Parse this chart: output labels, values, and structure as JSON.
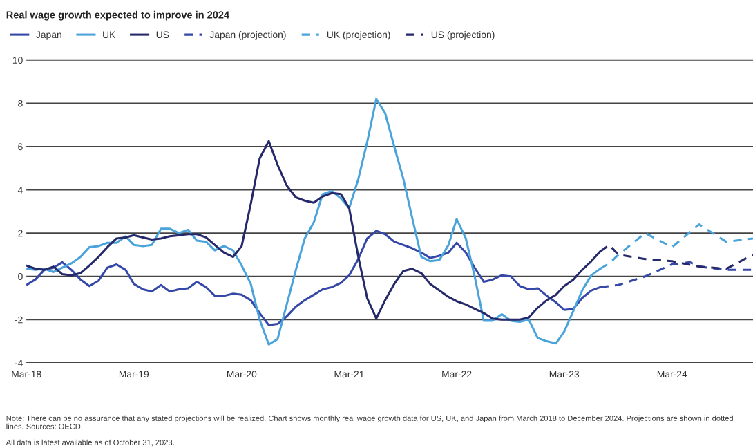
{
  "chart_data": {
    "type": "line",
    "title": "Real wage growth expected to improve in 2024",
    "x": [
      "2018-03",
      "2018-04",
      "2018-05",
      "2018-06",
      "2018-07",
      "2018-08",
      "2018-09",
      "2018-10",
      "2018-11",
      "2018-12",
      "2019-01",
      "2019-02",
      "2019-03",
      "2019-04",
      "2019-05",
      "2019-06",
      "2019-07",
      "2019-08",
      "2019-09",
      "2019-10",
      "2019-11",
      "2019-12",
      "2020-01",
      "2020-02",
      "2020-03",
      "2020-04",
      "2020-05",
      "2020-06",
      "2020-07",
      "2020-08",
      "2020-09",
      "2020-10",
      "2020-11",
      "2020-12",
      "2021-01",
      "2021-02",
      "2021-03",
      "2021-04",
      "2021-05",
      "2021-06",
      "2021-07",
      "2021-08",
      "2021-09",
      "2021-10",
      "2021-11",
      "2021-12",
      "2022-01",
      "2022-02",
      "2022-03",
      "2022-04",
      "2022-05",
      "2022-06",
      "2022-07",
      "2022-08",
      "2022-09",
      "2022-10",
      "2022-11",
      "2022-12",
      "2023-01",
      "2023-02",
      "2023-03",
      "2023-04",
      "2023-05",
      "2023-06",
      "2023-07"
    ],
    "series": [
      {
        "name": "Japan",
        "color": "#3548a8",
        "line_style": "solid",
        "values": [
          -0.4,
          -0.14,
          0.3,
          0.4,
          0.65,
          0.3,
          -0.15,
          -0.45,
          -0.2,
          0.4,
          0.55,
          0.3,
          -0.35,
          -0.6,
          -0.7,
          -0.4,
          -0.7,
          -0.6,
          -0.55,
          -0.25,
          -0.5,
          -0.9,
          -0.9,
          -0.8,
          -0.85,
          -1.1,
          -1.7,
          -2.25,
          -2.2,
          -1.85,
          -1.4,
          -1.1,
          -0.85,
          -0.6,
          -0.5,
          -0.3,
          0.05,
          0.8,
          1.75,
          2.1,
          1.95,
          1.6,
          1.45,
          1.3,
          1.1,
          0.85,
          0.95,
          1.1,
          1.55,
          1.1,
          0.4,
          -0.25,
          -0.15,
          0.05,
          0.0,
          -0.45,
          -0.6,
          -0.55,
          -0.9,
          -1.2,
          -1.55,
          -1.5,
          -1.0,
          -0.65,
          -0.5
        ]
      },
      {
        "name": "UK",
        "color": "#4aa3db",
        "line_style": "solid",
        "values": [
          0.35,
          0.3,
          0.35,
          0.2,
          0.4,
          0.6,
          0.9,
          1.35,
          1.4,
          1.55,
          1.55,
          1.85,
          1.45,
          1.4,
          1.45,
          2.2,
          2.2,
          2.0,
          2.15,
          1.65,
          1.6,
          1.2,
          1.4,
          1.2,
          0.5,
          -0.35,
          -2.0,
          -3.15,
          -2.9,
          -1.3,
          0.3,
          1.75,
          2.5,
          3.8,
          3.95,
          3.6,
          3.15,
          4.5,
          6.2,
          8.2,
          7.55,
          6.0,
          4.5,
          2.7,
          0.9,
          0.7,
          0.75,
          1.45,
          2.65,
          1.75,
          0.0,
          -2.05,
          -2.05,
          -1.75,
          -2.05,
          -2.1,
          -2.0,
          -2.85,
          -3.0,
          -3.1,
          -2.55,
          -1.6,
          -0.65,
          0.05,
          0.35
        ]
      },
      {
        "name": "US",
        "color": "#25296a",
        "line_style": "solid",
        "values": [
          0.5,
          0.35,
          0.3,
          0.45,
          0.1,
          0.05,
          0.15,
          0.5,
          0.9,
          1.35,
          1.75,
          1.8,
          1.9,
          1.8,
          1.7,
          1.75,
          1.85,
          1.9,
          1.95,
          1.95,
          1.8,
          1.45,
          1.1,
          0.9,
          1.4,
          3.35,
          5.45,
          6.25,
          5.15,
          4.2,
          3.65,
          3.5,
          3.4,
          3.7,
          3.85,
          3.8,
          3.15,
          0.9,
          -1.0,
          -1.95,
          -1.1,
          -0.35,
          0.25,
          0.35,
          0.15,
          -0.35,
          -0.65,
          -0.95,
          -1.15,
          -1.3,
          -1.5,
          -1.7,
          -1.95,
          -2.0,
          -2.0,
          -2.0,
          -1.9,
          -1.45,
          -1.1,
          -0.85,
          -0.45,
          -0.15,
          0.3,
          0.7,
          1.15
        ]
      },
      {
        "name": "Japan (projection)",
        "color": "#3548a8",
        "line_style": "dashed",
        "x": [
          "2023-07",
          "2023-09",
          "2023-12",
          "2024-03",
          "2024-05",
          "2024-06",
          "2024-09",
          "2024-12"
        ],
        "values": [
          -0.5,
          -0.4,
          0.0,
          0.55,
          0.65,
          0.45,
          0.3,
          0.3
        ]
      },
      {
        "name": "UK (projection)",
        "color": "#4aa3db",
        "line_style": "dashed",
        "x": [
          "2023-07",
          "2023-08",
          "2023-09",
          "2023-12",
          "2024-03",
          "2024-06",
          "2024-09",
          "2024-12"
        ],
        "values": [
          0.35,
          0.6,
          1.0,
          2.0,
          1.35,
          2.4,
          1.6,
          1.75
        ]
      },
      {
        "name": "US (projection)",
        "color": "#25296a",
        "line_style": "dashed",
        "x": [
          "2023-07",
          "2023-08",
          "2023-09",
          "2023-12",
          "2024-03",
          "2024-06",
          "2024-09",
          "2024-12"
        ],
        "values": [
          1.15,
          1.45,
          1.0,
          0.8,
          0.7,
          0.45,
          0.35,
          1.0
        ]
      }
    ],
    "xlim": [
      "2018-03",
      "2024-12"
    ],
    "xticks": [
      {
        "value": "2018-03",
        "label": "Mar-18"
      },
      {
        "value": "2019-03",
        "label": "Mar-19"
      },
      {
        "value": "2020-03",
        "label": "Mar-20"
      },
      {
        "value": "2021-03",
        "label": "Mar-21"
      },
      {
        "value": "2022-03",
        "label": "Mar-22"
      },
      {
        "value": "2023-03",
        "label": "Mar-23"
      },
      {
        "value": "2024-03",
        "label": "Mar-24"
      }
    ],
    "ylim": [
      -4,
      10
    ],
    "yticks": [
      -4,
      -2,
      0,
      2,
      4,
      6,
      8,
      10
    ],
    "grid": "y",
    "legend": "top left",
    "marker": "none",
    "annotations": [
      "Note: There can be no assurance that any stated projections will be realized. Chart shows monthly real wage growth data for US, UK, and Japan from March 2018 to December 2024. Projections are shown in dotted lines. Sources: OECD.",
      "All data is latest available as of October 31, 2023."
    ]
  }
}
